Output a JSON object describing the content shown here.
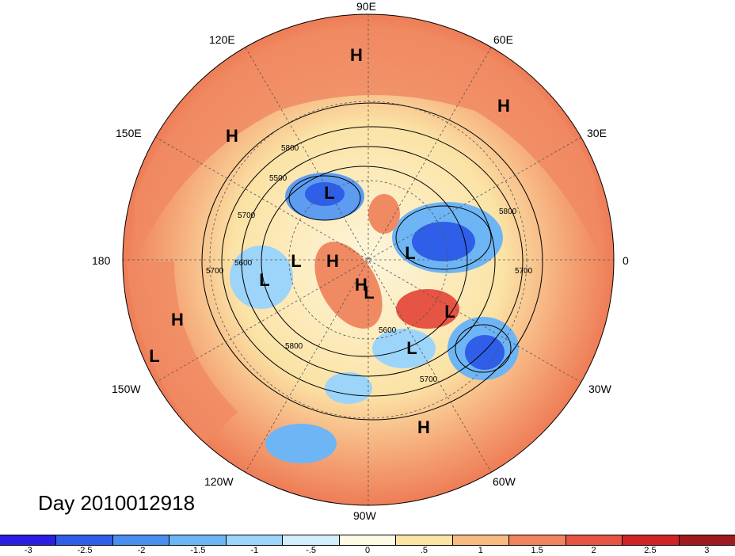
{
  "title": "Day 2010012918",
  "longitude_labels": [
    "90E",
    "60E",
    "30E",
    "0",
    "30W",
    "60W",
    "90W",
    "120W",
    "150W",
    "180",
    "150E",
    "120E"
  ],
  "contour_labels": [
    "5800",
    "5500",
    "5700",
    "5600",
    "5700",
    "5800",
    "5700",
    "5800",
    "5700",
    "5600"
  ],
  "pressure_centers": [
    "H",
    "H",
    "H",
    "L",
    "L",
    "L",
    "L",
    "L",
    "L",
    "H",
    "L",
    "L",
    "H",
    "H",
    "H"
  ],
  "colorbar": {
    "ticks": [
      "-3",
      "-2.5",
      "-2",
      "-1.5",
      "-1",
      "-.5",
      "0",
      ".5",
      "1",
      "1.5",
      "2",
      "2.5",
      "3"
    ],
    "colors": [
      "#2a1fe0",
      "#2f5fe8",
      "#4a8ef0",
      "#6eb5f5",
      "#9dd4fa",
      "#d2eefa",
      "#fdfbe6",
      "#fbe4a4",
      "#f8bb82",
      "#f0845e",
      "#e65444",
      "#cf2426",
      "#9e1a1e"
    ]
  },
  "colors": {
    "background": "#ffffff",
    "ocean_warm": "#f2855f",
    "land_line": "#000000"
  }
}
